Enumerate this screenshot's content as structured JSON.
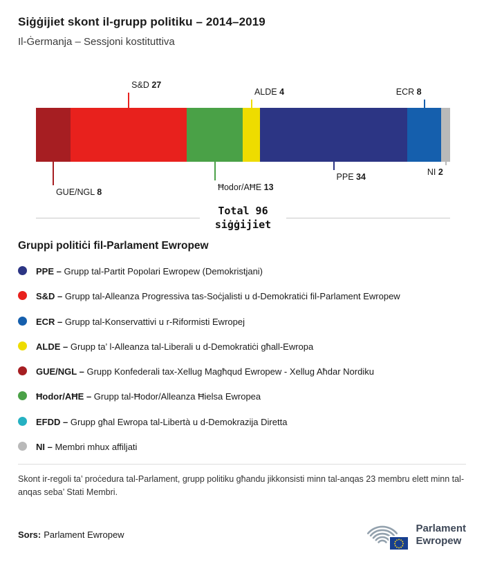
{
  "header": {
    "title": "Siġġijiet skont il-grupp politiku – 2014–2019",
    "subtitle": "Il-Ġermanja – Sessjoni kostituttiva"
  },
  "chart_data": {
    "type": "bar",
    "orientation": "horizontal",
    "stacked": true,
    "title": "Siġġijiet skont il-grupp politiku – 2014–2019",
    "subtitle": "Il-Ġermanja – Sessjoni kostituttiva",
    "total": 96,
    "total_line1": "Total 96",
    "total_line2": "siġġijiet",
    "groups": [
      {
        "name": "GUE/NGL",
        "seats": 8,
        "color": "#a61e22"
      },
      {
        "name": "S&D",
        "seats": 27,
        "color": "#e8211d"
      },
      {
        "name": "Ħodor/AĦE",
        "seats": 13,
        "color": "#4aa147"
      },
      {
        "name": "ALDE",
        "seats": 4,
        "color": "#eedc00"
      },
      {
        "name": "PPE",
        "seats": 34,
        "color": "#2c3584"
      },
      {
        "name": "ECR",
        "seats": 8,
        "color": "#155fad"
      },
      {
        "name": "NI",
        "seats": 2,
        "color": "#b9b9b9"
      }
    ]
  },
  "legend": {
    "heading": "Gruppi politiċi fil-Parlament Ewropew",
    "items": [
      {
        "abbr": "PPE –",
        "desc": "Grupp tal-Partit Popolari Ewropew (Demokristjani)",
        "color": "#2c3584"
      },
      {
        "abbr": "S&D –",
        "desc": "Grupp tal-Alleanza Progressiva tas-Soċjalisti u d-Demokratiċi fil-Parlament Ewropew",
        "color": "#e8211d"
      },
      {
        "abbr": "ECR –",
        "desc": "Grupp tal-Konservattivi u r-Riformisti Ewropej",
        "color": "#155fad"
      },
      {
        "abbr": "ALDE –",
        "desc": "Grupp ta’ l-Alleanza tal-Liberali u d-Demokratiċi għall-Ewropa",
        "color": "#eedc00"
      },
      {
        "abbr": "GUE/NGL –",
        "desc": "Grupp Konfederali tax-Xellug Magħqud Ewropew - Xellug Aħdar Nordiku",
        "color": "#a61e22"
      },
      {
        "abbr": "Ħodor/AĦE –",
        "desc": "Grupp tal-Ħodor/Alleanza Ħielsa Ewropea",
        "color": "#4aa147"
      },
      {
        "abbr": "EFDD –",
        "desc": "Grupp għal Ewropa tal-Libertà u d-Demokrazija Diretta",
        "color": "#25b1c2"
      },
      {
        "abbr": "NI –",
        "desc": "Membri mhux affiljati",
        "color": "#b9b9b9"
      }
    ]
  },
  "footer": {
    "note": "Skont ir-regoli ta’ proċedura tal-Parlament, grupp politiku għandu jikkonsisti minn tal-anqas 23 membru elett minn tal-anqas seba’ Stati Membri.",
    "source_label": "Sors:",
    "source_text": "Parlament Ewropew",
    "logo": {
      "line1": "Parlament",
      "line2": "Ewropew"
    }
  }
}
